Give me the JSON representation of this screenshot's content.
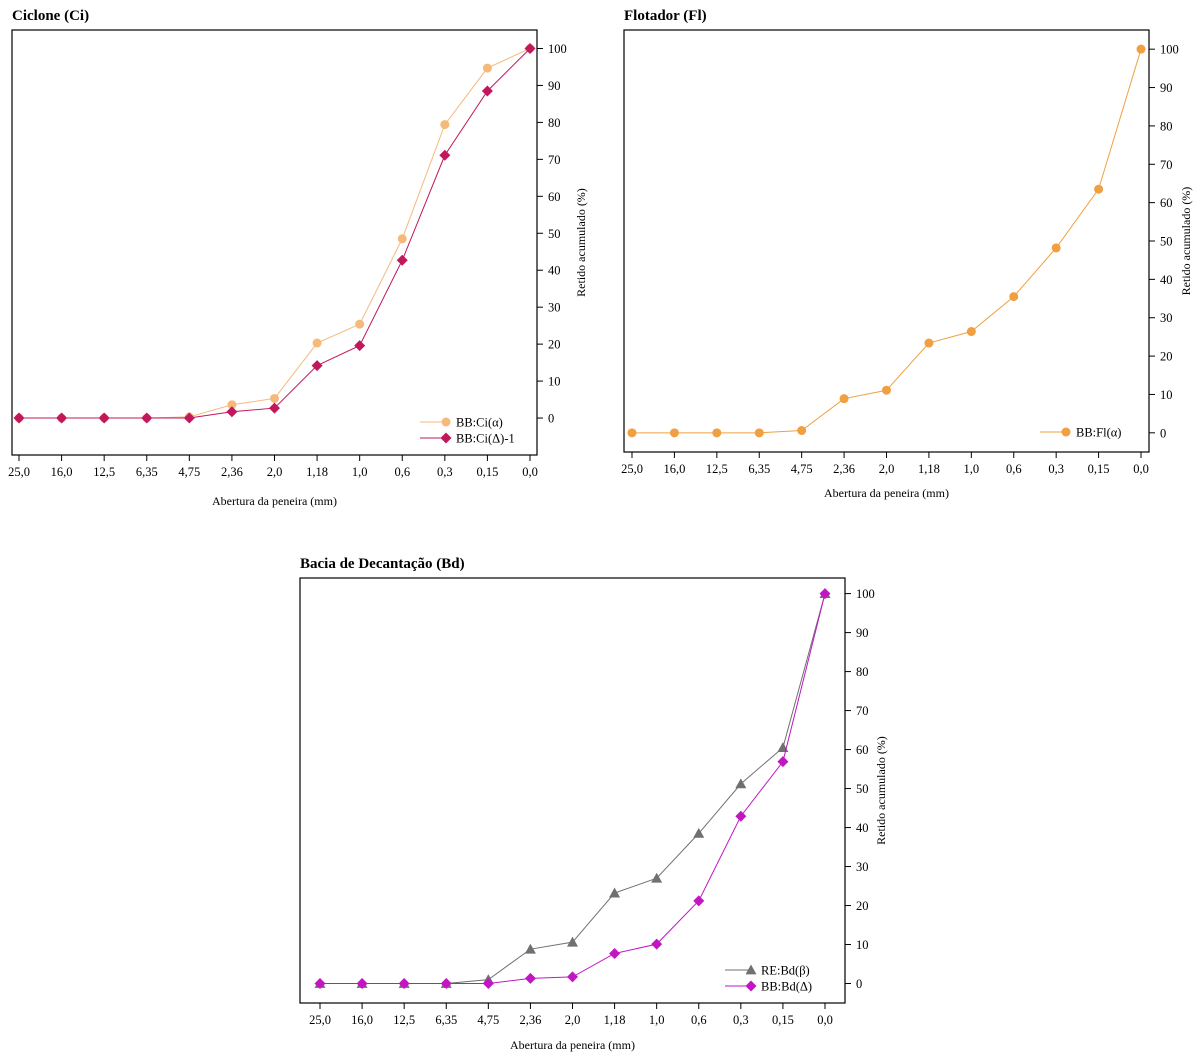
{
  "chart_data": [
    {
      "type": "line",
      "title": "Ciclone (Ci)",
      "xlabel": "Abertura da peneira (mm)",
      "ylabel": "Retido acumulado (%)",
      "categories": [
        "25,0",
        "16,0",
        "12,5",
        "6,35",
        "4,75",
        "2,36",
        "2,0",
        "1,18",
        "1,0",
        "0,6",
        "0,3",
        "0,15",
        "0,0"
      ],
      "yticks": [
        "0",
        "10",
        "20",
        "30",
        "40",
        "50",
        "60",
        "70",
        "80",
        "90",
        "100"
      ],
      "ylim": [
        -10,
        105
      ],
      "y_axis_side": "right",
      "legend_position": "bottom-right",
      "series": [
        {
          "name": "BB:Ci(α)",
          "marker": "circle",
          "color": "#f5b97a",
          "values": [
            0,
            0,
            0,
            0,
            0.3,
            3.6,
            5.3,
            20.3,
            25.4,
            48.5,
            79.4,
            94.7,
            100
          ]
        },
        {
          "name": "BB:Ci(Δ)-1",
          "marker": "diamond",
          "color": "#c2185b",
          "values": [
            0,
            0,
            0,
            0,
            0,
            1.7,
            2.7,
            14.2,
            19.6,
            42.7,
            71.1,
            88.5,
            100
          ]
        }
      ]
    },
    {
      "type": "line",
      "title": "Flotador (Fl)",
      "xlabel": "Abertura da peneira (mm)",
      "ylabel": "Retido acumulado (%)",
      "categories": [
        "25,0",
        "16,0",
        "12,5",
        "6,35",
        "4,75",
        "2,36",
        "2,0",
        "1,18",
        "1,0",
        "0,6",
        "0,3",
        "0,15",
        "0,0"
      ],
      "yticks": [
        "0",
        "10",
        "20",
        "30",
        "40",
        "50",
        "60",
        "70",
        "80",
        "90",
        "100"
      ],
      "ylim": [
        -5,
        105
      ],
      "y_axis_side": "right",
      "legend_position": "bottom-right",
      "series": [
        {
          "name": "BB:Fl(α)",
          "marker": "circle",
          "color": "#f0a040",
          "values": [
            0,
            0,
            0,
            0,
            0.6,
            8.9,
            11.1,
            23.4,
            26.4,
            35.5,
            48.2,
            63.5,
            100
          ]
        }
      ]
    },
    {
      "type": "line",
      "title": "Bacia de Decantação (Bd)",
      "xlabel": "Abertura da peneira (mm)",
      "ylabel": "Retido acumulado (%)",
      "categories": [
        "25,0",
        "16,0",
        "12,5",
        "6,35",
        "4,75",
        "2,36",
        "2,0",
        "1,18",
        "1,0",
        "0,6",
        "0,3",
        "0,15",
        "0,0"
      ],
      "yticks": [
        "0",
        "10",
        "20",
        "30",
        "40",
        "50",
        "60",
        "70",
        "80",
        "90",
        "100"
      ],
      "ylim": [
        -5,
        104
      ],
      "y_axis_side": "right",
      "legend_position": "bottom-right",
      "series": [
        {
          "name": "RE:Bd(β)",
          "marker": "triangle",
          "color": "#707070",
          "values": [
            0,
            0,
            0,
            0,
            1.0,
            8.8,
            10.6,
            23.2,
            27.0,
            38.5,
            51.2,
            60.5,
            100
          ]
        },
        {
          "name": "BB:Bd(Δ)",
          "marker": "diamond",
          "color": "#c316c3",
          "values": [
            0,
            0,
            0,
            0,
            0,
            1.3,
            1.7,
            7.7,
            10.1,
            21.2,
            42.9,
            56.9,
            100
          ]
        }
      ]
    }
  ]
}
